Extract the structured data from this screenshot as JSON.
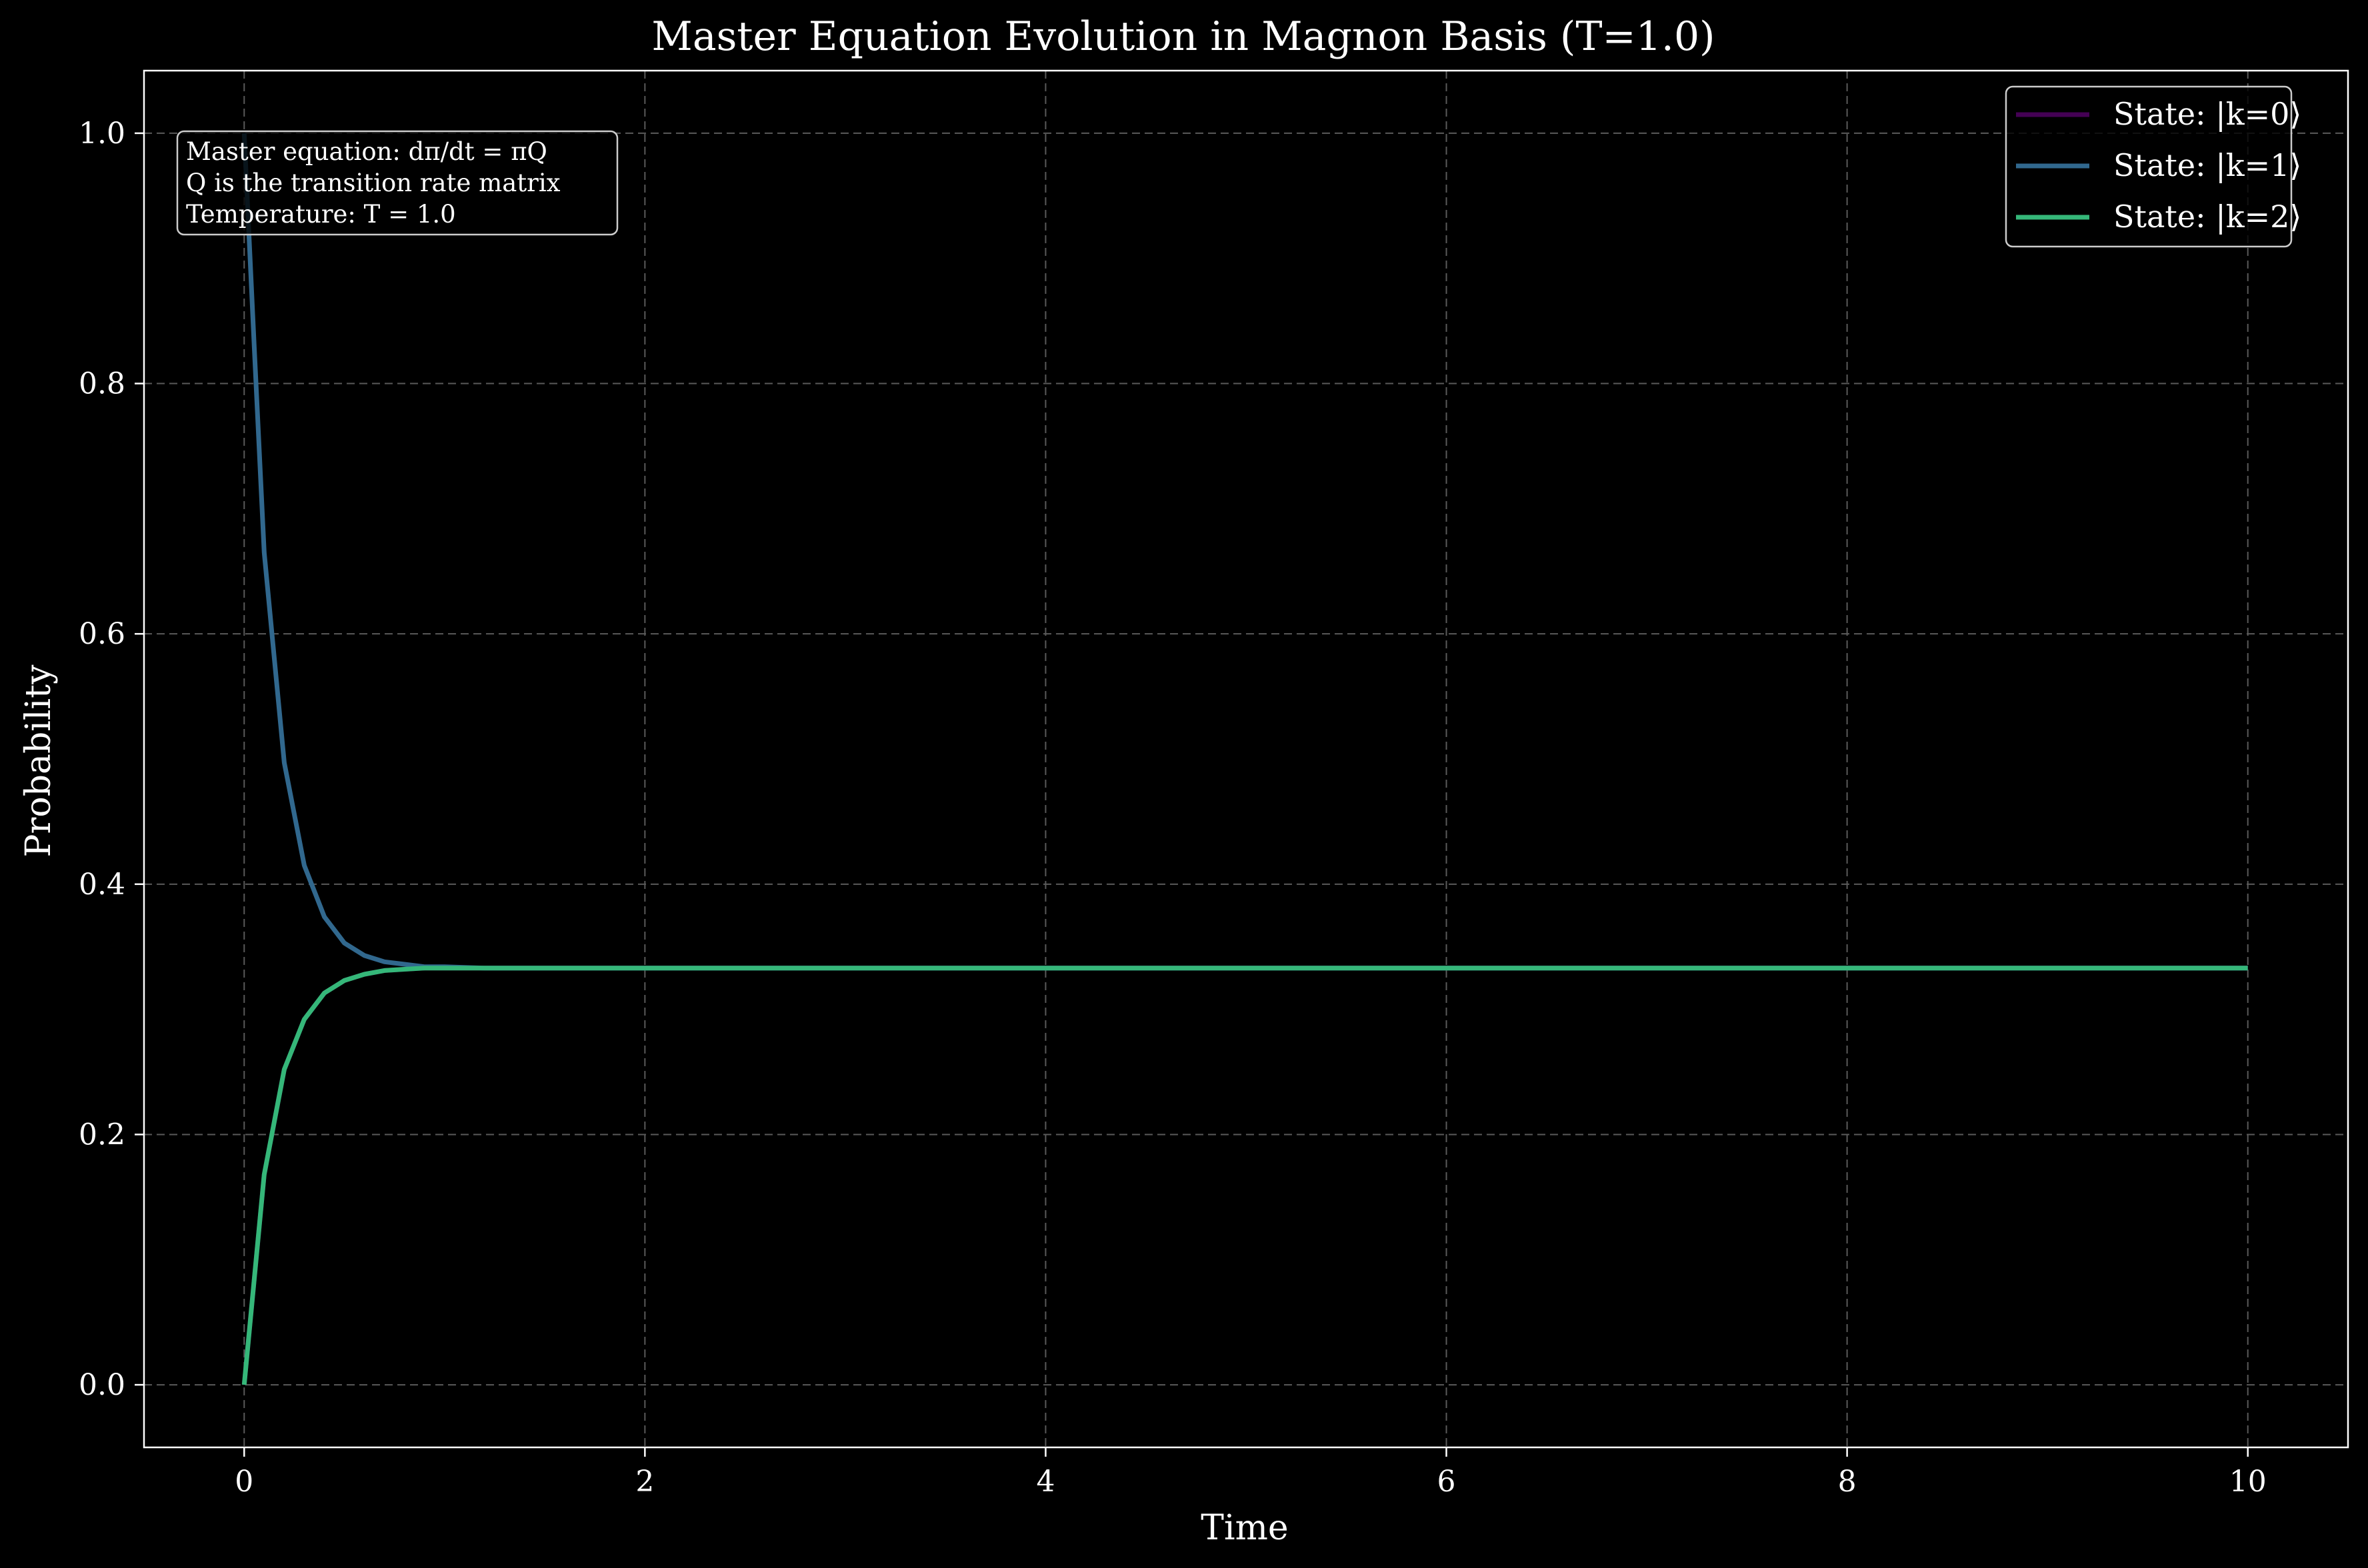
{
  "chart_data": {
    "type": "line",
    "title": "Master Equation Evolution in Magnon Basis (T=1.0)",
    "xlabel": "Time",
    "ylabel": "Probability",
    "xlim": [
      -0.5,
      10.5
    ],
    "ylim": [
      -0.05,
      1.05
    ],
    "xticks": [
      0,
      2,
      4,
      6,
      8,
      10
    ],
    "xtick_labels": [
      "0",
      "2",
      "4",
      "6",
      "8",
      "10"
    ],
    "yticks": [
      0.0,
      0.2,
      0.4,
      0.6,
      0.8,
      1.0
    ],
    "ytick_labels": [
      "0.0",
      "0.2",
      "0.4",
      "0.6",
      "0.8",
      "1.0"
    ],
    "grid": true,
    "legend_position": "top-right",
    "annotation": [
      "Master equation: dπ/dt = πQ",
      "Q is the transition rate matrix",
      "Temperature: T = 1.0"
    ],
    "series": [
      {
        "name": "State: |k=0⟩",
        "color": "#440154",
        "x": [
          0,
          0.1,
          0.2,
          0.3,
          0.4,
          0.5,
          0.6,
          0.7,
          0.8,
          0.9,
          1.0,
          1.2,
          1.5,
          2,
          3,
          4,
          5,
          6,
          7,
          8,
          9,
          10
        ],
        "y": [
          0.0,
          0.168,
          0.252,
          0.292,
          0.313,
          0.323,
          0.328,
          0.331,
          0.332,
          0.333,
          0.333,
          0.333,
          0.333,
          0.333,
          0.333,
          0.333,
          0.333,
          0.333,
          0.333,
          0.333,
          0.333,
          0.333
        ]
      },
      {
        "name": "State: |k=1⟩",
        "color": "#31688e",
        "x": [
          0,
          0.05,
          0.1,
          0.2,
          0.3,
          0.4,
          0.5,
          0.6,
          0.7,
          0.8,
          0.9,
          1.0,
          1.2,
          1.5,
          2,
          3,
          4,
          5,
          6,
          7,
          8,
          9,
          10
        ],
        "y": [
          1.0,
          0.83,
          0.665,
          0.497,
          0.415,
          0.374,
          0.353,
          0.343,
          0.338,
          0.336,
          0.334,
          0.334,
          0.333,
          0.333,
          0.333,
          0.333,
          0.333,
          0.333,
          0.333,
          0.333,
          0.333,
          0.333,
          0.333
        ]
      },
      {
        "name": "State: |k=2⟩",
        "color": "#35b779",
        "x": [
          0,
          0.1,
          0.2,
          0.3,
          0.4,
          0.5,
          0.6,
          0.7,
          0.8,
          0.9,
          1.0,
          1.2,
          1.5,
          2,
          3,
          4,
          5,
          6,
          7,
          8,
          9,
          10
        ],
        "y": [
          0.0,
          0.168,
          0.252,
          0.292,
          0.313,
          0.323,
          0.328,
          0.331,
          0.332,
          0.333,
          0.333,
          0.333,
          0.333,
          0.333,
          0.333,
          0.333,
          0.333,
          0.333,
          0.333,
          0.333,
          0.333,
          0.333
        ]
      }
    ]
  }
}
